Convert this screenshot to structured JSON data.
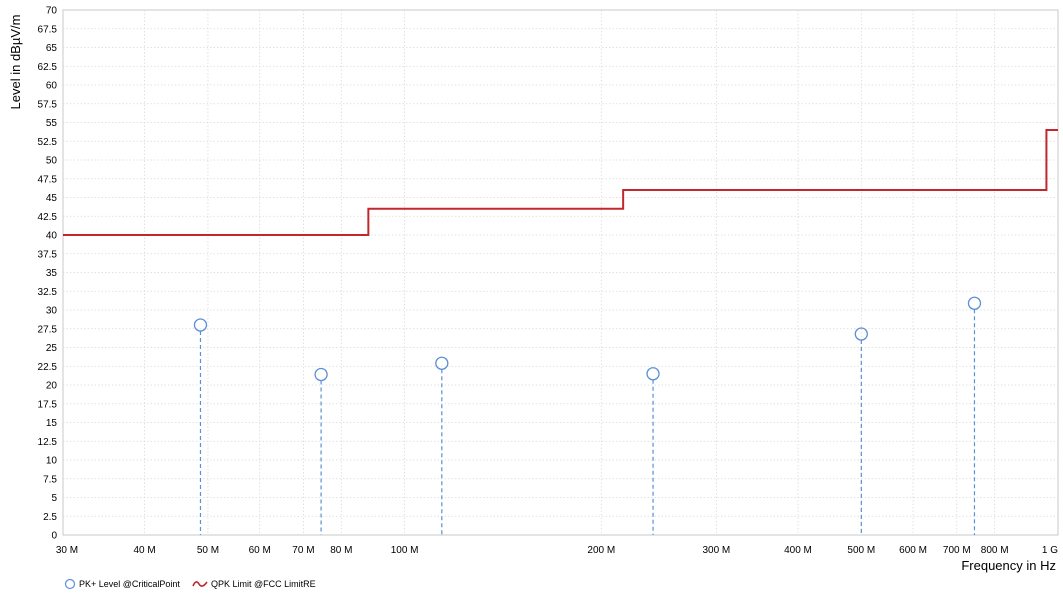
{
  "chart_data": {
    "type": "scatter",
    "xlabel": "Frequency in Hz",
    "ylabel": "Level in dBµV/m",
    "x_scale": "log",
    "xlim": [
      30000000,
      1000000000
    ],
    "ylim": [
      0,
      70
    ],
    "grid": true,
    "legend_position": "bottom-left",
    "x_ticks": [
      {
        "value": 30000000,
        "label": "30 M"
      },
      {
        "value": 40000000,
        "label": "40 M"
      },
      {
        "value": 50000000,
        "label": "50 M"
      },
      {
        "value": 60000000,
        "label": "60 M"
      },
      {
        "value": 70000000,
        "label": "70 M"
      },
      {
        "value": 80000000,
        "label": "80 M"
      },
      {
        "value": 100000000,
        "label": "100 M"
      },
      {
        "value": 200000000,
        "label": "200 M"
      },
      {
        "value": 300000000,
        "label": "300 M"
      },
      {
        "value": 400000000,
        "label": "400 M"
      },
      {
        "value": 500000000,
        "label": "500 M"
      },
      {
        "value": 600000000,
        "label": "600 M"
      },
      {
        "value": 700000000,
        "label": "700 M"
      },
      {
        "value": 800000000,
        "label": "800 M"
      },
      {
        "value": 1000000000,
        "label": "1 G"
      }
    ],
    "y_ticks": [
      "0",
      "2.5",
      "5",
      "7.5",
      "10",
      "12.5",
      "15",
      "17.5",
      "20",
      "22.5",
      "25",
      "27.5",
      "30",
      "32.5",
      "35",
      "37.5",
      "40",
      "42.5",
      "45",
      "47.5",
      "50",
      "52.5",
      "55",
      "57.5",
      "60",
      "62.5",
      "65",
      "67.5",
      "70"
    ],
    "series": [
      {
        "name": "PK+ Level @CriticalPoint",
        "kind": "stem",
        "color": "#5b8fd6",
        "points": [
          {
            "x": 48700000,
            "y": 28.0
          },
          {
            "x": 74500000,
            "y": 21.4
          },
          {
            "x": 114000000,
            "y": 22.9
          },
          {
            "x": 240000000,
            "y": 21.5
          },
          {
            "x": 500000000,
            "y": 26.8
          },
          {
            "x": 745000000,
            "y": 30.9
          }
        ]
      },
      {
        "name": "QPK Limit @FCC LimitRE",
        "kind": "step",
        "color": "#c0282d",
        "points": [
          {
            "x": 30000000,
            "y": 40.0
          },
          {
            "x": 88000000,
            "y": 40.0
          },
          {
            "x": 88000000,
            "y": 43.5
          },
          {
            "x": 216000000,
            "y": 43.5
          },
          {
            "x": 216000000,
            "y": 46.0
          },
          {
            "x": 960000000,
            "y": 46.0
          },
          {
            "x": 960000000,
            "y": 54.0
          },
          {
            "x": 1000000000,
            "y": 54.0
          }
        ]
      }
    ]
  },
  "legend": {
    "items": [
      {
        "label": "PK+ Level @CriticalPoint",
        "icon": "circle-marker-icon"
      },
      {
        "label": "QPK Limit @FCC LimitRE",
        "icon": "red-line-icon"
      }
    ]
  }
}
